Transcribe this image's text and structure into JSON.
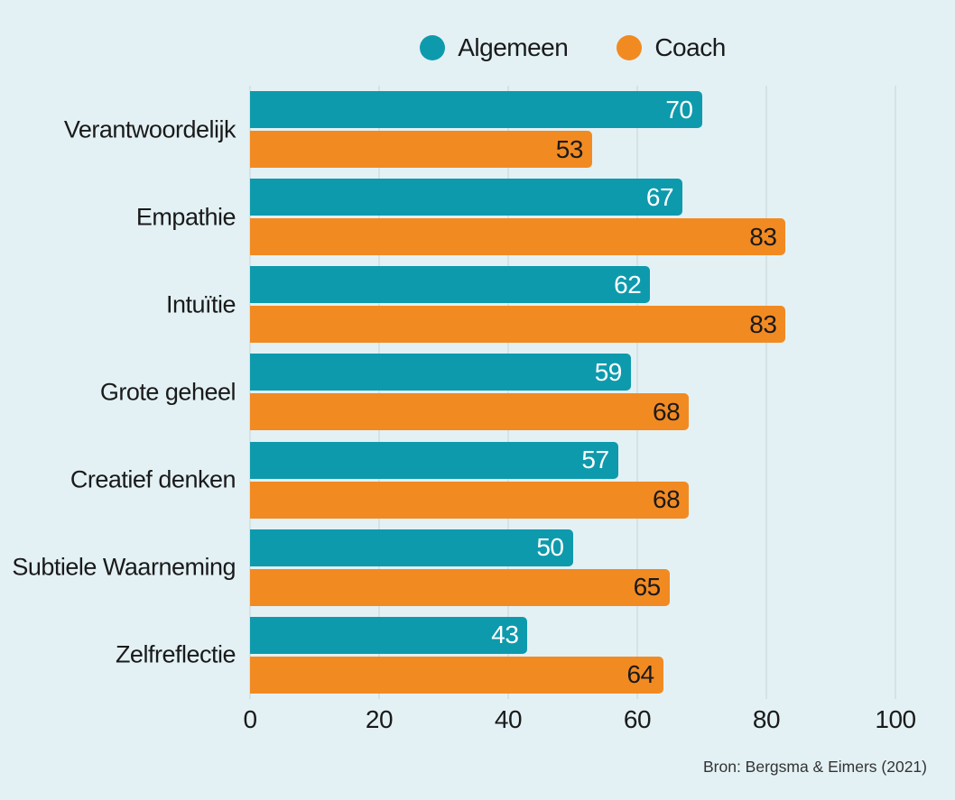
{
  "page": {
    "background_color": "#e3f1f5",
    "text_color": "#1a1a1a",
    "gridline_color": "#c7d2d6"
  },
  "chart_data": {
    "type": "bar",
    "orientation": "horizontal",
    "title": "",
    "xlabel": "",
    "ylabel": "",
    "xlim": [
      0,
      100
    ],
    "x_ticks": [
      0,
      20,
      40,
      60,
      80,
      100
    ],
    "grid": true,
    "legend_position": "top-center",
    "categories": [
      "Verantwoordelijk",
      "Empathie",
      "Intuïtie",
      "Grote geheel",
      "Creatief denken",
      "Subtiele Waarneming",
      "Zelfreflectie"
    ],
    "series": [
      {
        "name": "Algemeen",
        "color": "#0e9aad",
        "value_label_color": "#ffffff",
        "values": [
          70,
          67,
          62,
          59,
          57,
          50,
          43
        ]
      },
      {
        "name": "Coach",
        "color": "#f28a22",
        "value_label_color": "#1a1a1a",
        "values": [
          53,
          83,
          83,
          68,
          68,
          65,
          64
        ]
      }
    ],
    "source": "Bron: Bergsma & Eimers (2021)"
  }
}
